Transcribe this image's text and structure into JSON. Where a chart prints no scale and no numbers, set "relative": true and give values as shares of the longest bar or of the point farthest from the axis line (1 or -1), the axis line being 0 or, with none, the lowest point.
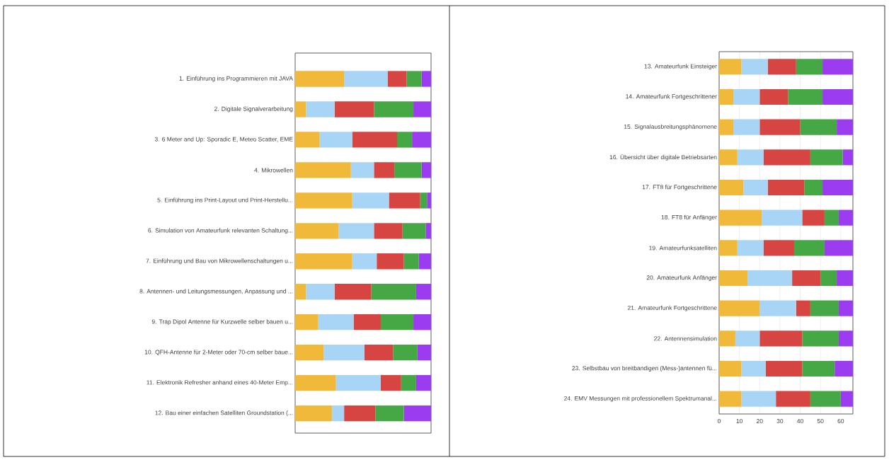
{
  "chart_data": [
    {
      "type": "bar",
      "orientation": "horizontal",
      "stacked": true,
      "relative": true,
      "tick_labels": "y",
      "categories": [
        "1. Einführung ins Programmieren mit JAVA",
        "2. Digitale Signalverarbeitung",
        "3. 6 Meter and Up: Sporadic E, Meteo Scatter, EME",
        "4. Mikrowellen",
        "5. Einführung ins Print-Layout und Print-Herstellu...",
        "6. Simulation von Amateurfunk relevanten Schaltung...",
        "7. Einführung und Bau von Mikrowellenschaltungen u...",
        "8. Antennen- und Leitungsmessungen, Anpassung und ...",
        "9. Trap Dipol Antenne für Kurzwelle selber bauen u...",
        "10. QFH-Antenne für 2-Meter oder 70-cm selber baue...",
        "11. Elektronik Refresher anhand eines 40-Meter Emp...",
        "12. Bau einer einfachen Satelliten Groundstation (..."
      ],
      "series": [
        {
          "color": "#f0b93a",
          "values": [
            0.36,
            0.08,
            0.18,
            0.41,
            0.42,
            0.32,
            0.42,
            0.08,
            0.17,
            0.21,
            0.3,
            0.27
          ]
        },
        {
          "color": "#a8d4f5",
          "values": [
            0.32,
            0.21,
            0.24,
            0.17,
            0.27,
            0.26,
            0.18,
            0.21,
            0.26,
            0.3,
            0.33,
            0.09
          ]
        },
        {
          "color": "#d64541",
          "values": [
            0.14,
            0.29,
            0.33,
            0.15,
            0.23,
            0.21,
            0.2,
            0.27,
            0.2,
            0.21,
            0.15,
            0.23
          ]
        },
        {
          "color": "#45a845",
          "values": [
            0.11,
            0.29,
            0.11,
            0.2,
            0.05,
            0.17,
            0.11,
            0.33,
            0.24,
            0.18,
            0.11,
            0.21
          ]
        },
        {
          "color": "#9b3cf0",
          "values": [
            0.07,
            0.13,
            0.14,
            0.07,
            0.03,
            0.04,
            0.09,
            0.11,
            0.13,
            0.1,
            0.11,
            0.2
          ]
        }
      ]
    },
    {
      "type": "bar",
      "orientation": "horizontal",
      "stacked": true,
      "grid": "x",
      "categories": [
        "13. Amateurfunk Einsteiger",
        "14. Amateurfunk Fortgeschrittener",
        "15. Signalausbreitungsphänomene",
        "16. Übersicht über digitale Betriebsarten",
        "17. FT8 für Fortgeschrittene",
        "18. FT8 für Anfänger",
        "19. Amateurfunksatelliten",
        "20. Amateurfunk Anfänger",
        "21. Amateurfunk Fortgeschrittene",
        "22. Antennensimulation",
        "23. Selbstbau von breitbandigen (Mess-)antennen fü...",
        "24. EMV Messungen mit professionellem Spektrumanal..."
      ],
      "xlim": [
        0,
        66
      ],
      "xticks": [
        0,
        10,
        20,
        30,
        40,
        50,
        60
      ],
      "series": [
        {
          "color": "#f0b93a",
          "values": [
            11,
            7,
            7,
            9,
            12,
            21,
            9,
            14,
            20,
            8,
            11,
            11
          ]
        },
        {
          "color": "#a8d4f5",
          "values": [
            13,
            13,
            13,
            13,
            12,
            20,
            13,
            22,
            18,
            12,
            12,
            17
          ]
        },
        {
          "color": "#d64541",
          "values": [
            14,
            14,
            20,
            23,
            18,
            11,
            15,
            14,
            7,
            21,
            18,
            17
          ]
        },
        {
          "color": "#45a845",
          "values": [
            13,
            17,
            18,
            16,
            9,
            7,
            15,
            8,
            14,
            18,
            16,
            15
          ]
        },
        {
          "color": "#9b3cf0",
          "values": [
            15,
            15,
            8,
            5,
            15,
            7,
            14,
            8,
            7,
            7,
            9,
            6
          ]
        }
      ]
    }
  ]
}
